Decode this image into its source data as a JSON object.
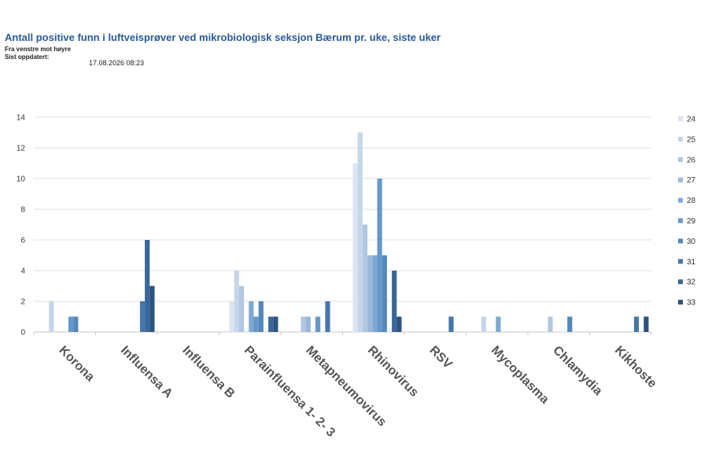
{
  "header": {
    "title": "Antall positive funn i luftveisprøver ved mikrobiologisk seksjon Bærum pr. uke, siste uker",
    "subtitle": "Fra venstre mot høyre",
    "updated_label": "Sist oppdatert:",
    "updated_value": "17.08.2026 08:23"
  },
  "chart_data": {
    "type": "bar",
    "title": "Antall positive funn i luftveisprøver ved mikrobiologisk seksjon Bærum pr. uke, siste uker",
    "xlabel": "",
    "ylabel": "",
    "ylim": [
      0,
      14
    ],
    "yticks": [
      0,
      2,
      4,
      6,
      8,
      10,
      12,
      14
    ],
    "grid": true,
    "legend_position": "right",
    "categories": [
      "Korona",
      "Influensa A",
      "Influensa B",
      "Parainfluensa 1- 2- 3",
      "Metapneumovirus",
      "Rhinovirus",
      "RSV",
      "Mycoplasma",
      "Chlamydia",
      "Kikhoste"
    ],
    "series": [
      {
        "name": "24",
        "color": "#dbe5f1",
        "values": [
          0,
          0,
          0,
          2,
          0,
          11,
          0,
          0,
          0,
          0
        ]
      },
      {
        "name": "25",
        "color": "#c6d6ea",
        "values": [
          2,
          0,
          0,
          4,
          0,
          13,
          0,
          1,
          0,
          0
        ]
      },
      {
        "name": "26",
        "color": "#b1c7e2",
        "values": [
          0,
          0,
          0,
          3,
          1,
          7,
          0,
          0,
          1,
          0
        ]
      },
      {
        "name": "27",
        "color": "#99b8da",
        "values": [
          0,
          0,
          0,
          0,
          1,
          5,
          0,
          0,
          0,
          0
        ]
      },
      {
        "name": "28",
        "color": "#7ea8d2",
        "values": [
          0,
          0,
          0,
          2,
          0,
          5,
          0,
          1,
          0,
          0
        ]
      },
      {
        "name": "29",
        "color": "#6598c9",
        "values": [
          1,
          0,
          0,
          1,
          1,
          10,
          0,
          0,
          0,
          0
        ]
      },
      {
        "name": "30",
        "color": "#5488bd",
        "values": [
          1,
          0,
          0,
          2,
          0,
          5,
          0,
          0,
          1,
          0
        ]
      },
      {
        "name": "31",
        "color": "#4677ab",
        "values": [
          0,
          2,
          0,
          0,
          2,
          0,
          1,
          0,
          0,
          1
        ]
      },
      {
        "name": "32",
        "color": "#3a6798",
        "values": [
          0,
          6,
          0,
          1,
          0,
          4,
          0,
          0,
          0,
          0
        ]
      },
      {
        "name": "33",
        "color": "#2c5282",
        "values": [
          0,
          3,
          0,
          1,
          0,
          1,
          0,
          0,
          0,
          1
        ]
      }
    ]
  }
}
